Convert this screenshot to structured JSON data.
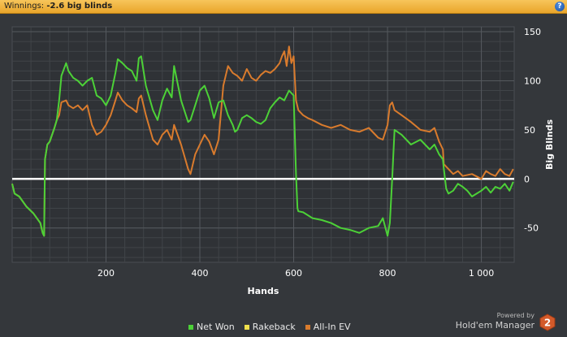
{
  "header": {
    "label": "Winnings:",
    "value": "-2.6 big blinds",
    "help": "?"
  },
  "brand": {
    "powered_by": "Powered by",
    "name": "Hold'em Manager",
    "logo_number": "2"
  },
  "chart_data": {
    "type": "line",
    "xlabel": "Hands",
    "ylabel": "Big Blinds",
    "xlim": [
      0,
      1070
    ],
    "ylim": [
      -85,
      155
    ],
    "xticks": [
      200,
      400,
      600,
      800,
      1000
    ],
    "xtick_labels": [
      "200",
      "400",
      "600",
      "800",
      "1 000"
    ],
    "yticks": [
      150,
      100,
      50,
      0,
      -50
    ],
    "ytick_labels": [
      "150",
      "100",
      "50",
      "0",
      "-50"
    ],
    "zero_line": true,
    "grid": true,
    "legend_position": "bottom",
    "series": [
      {
        "name": "Net Won",
        "color": "#4cd137",
        "x": [
          0,
          5,
          15,
          30,
          45,
          60,
          65,
          68,
          70,
          75,
          80,
          90,
          95,
          100,
          105,
          115,
          120,
          130,
          140,
          150,
          160,
          170,
          180,
          190,
          200,
          210,
          220,
          225,
          235,
          245,
          255,
          265,
          270,
          275,
          285,
          300,
          310,
          320,
          330,
          340,
          345,
          360,
          375,
          380,
          390,
          400,
          410,
          420,
          430,
          440,
          450,
          460,
          470,
          475,
          480,
          490,
          500,
          510,
          520,
          530,
          540,
          550,
          560,
          570,
          580,
          590,
          600,
          605,
          608,
          610,
          620,
          640,
          660,
          680,
          700,
          720,
          740,
          760,
          780,
          790,
          800,
          805,
          810,
          815,
          830,
          850,
          870,
          890,
          900,
          910,
          918,
          920,
          925,
          930,
          940,
          950,
          960,
          970,
          980,
          990,
          1000,
          1010,
          1020,
          1030,
          1040,
          1050,
          1060,
          1068
        ],
        "y": [
          -5,
          -15,
          -18,
          -28,
          -35,
          -45,
          -55,
          -58,
          20,
          35,
          38,
          52,
          60,
          80,
          105,
          118,
          110,
          103,
          100,
          95,
          100,
          103,
          85,
          82,
          75,
          85,
          108,
          122,
          118,
          113,
          110,
          100,
          123,
          125,
          95,
          70,
          60,
          80,
          92,
          83,
          115,
          80,
          58,
          60,
          75,
          90,
          95,
          82,
          62,
          78,
          80,
          65,
          55,
          48,
          50,
          62,
          65,
          62,
          58,
          56,
          60,
          72,
          78,
          83,
          80,
          90,
          85,
          5,
          -30,
          -33,
          -34,
          -40,
          -42,
          -45,
          -50,
          -52,
          -55,
          -50,
          -48,
          -40,
          -58,
          -45,
          0,
          50,
          45,
          35,
          40,
          30,
          35,
          25,
          20,
          10,
          -10,
          -15,
          -12,
          -5,
          -8,
          -12,
          -18,
          -15,
          -12,
          -8,
          -14,
          -8,
          -10,
          -5,
          -12,
          -3
        ]
      },
      {
        "name": "Rakeback",
        "color": "#f0e04c",
        "x": [],
        "y": []
      },
      {
        "name": "All-In EV",
        "color": "#d97b2d",
        "x": [
          0,
          5,
          15,
          30,
          45,
          60,
          65,
          68,
          70,
          75,
          80,
          90,
          95,
          100,
          105,
          115,
          120,
          130,
          140,
          150,
          160,
          170,
          180,
          190,
          200,
          210,
          220,
          225,
          235,
          245,
          255,
          265,
          270,
          275,
          285,
          300,
          310,
          320,
          330,
          340,
          345,
          360,
          375,
          380,
          390,
          400,
          410,
          420,
          430,
          440,
          450,
          460,
          470,
          480,
          490,
          500,
          510,
          520,
          530,
          540,
          550,
          560,
          570,
          575,
          580,
          585,
          590,
          595,
          600,
          605,
          610,
          620,
          630,
          640,
          660,
          680,
          700,
          720,
          740,
          760,
          780,
          790,
          800,
          805,
          810,
          815,
          830,
          850,
          870,
          890,
          900,
          910,
          918,
          920,
          930,
          940,
          950,
          960,
          980,
          1000,
          1010,
          1020,
          1030,
          1040,
          1050,
          1060,
          1068
        ],
        "y": [
          -5,
          -15,
          -18,
          -28,
          -35,
          -45,
          -55,
          -58,
          20,
          35,
          38,
          52,
          60,
          65,
          78,
          80,
          75,
          72,
          75,
          70,
          75,
          55,
          45,
          48,
          55,
          65,
          80,
          88,
          80,
          75,
          72,
          68,
          82,
          85,
          65,
          40,
          35,
          45,
          50,
          40,
          55,
          35,
          10,
          5,
          25,
          35,
          45,
          38,
          25,
          40,
          95,
          115,
          108,
          105,
          100,
          112,
          103,
          100,
          106,
          110,
          108,
          112,
          118,
          125,
          130,
          115,
          135,
          118,
          125,
          80,
          70,
          65,
          62,
          60,
          55,
          52,
          55,
          50,
          48,
          52,
          42,
          40,
          55,
          75,
          78,
          70,
          65,
          58,
          50,
          48,
          52,
          38,
          30,
          15,
          10,
          5,
          8,
          3,
          5,
          0,
          8,
          5,
          3,
          10,
          5,
          3,
          10
        ]
      }
    ]
  }
}
